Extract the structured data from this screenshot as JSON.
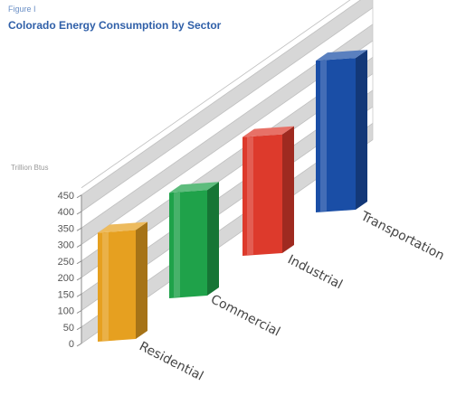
{
  "figure_label": "Figure I",
  "chart_data": {
    "type": "bar",
    "title": "Colorado Energy Consumption by Sector",
    "ylabel": "Trillion Btus",
    "xlabel": "",
    "categories": [
      "Residential",
      "Commercial",
      "Industrial",
      "Transportation"
    ],
    "values": [
      330,
      320,
      360,
      460
    ],
    "yticks": [
      0,
      50,
      100,
      150,
      200,
      250,
      300,
      350,
      400,
      450
    ],
    "ylim": [
      0,
      450
    ],
    "grid": true,
    "colors": {
      "Residential": "#e6a020",
      "Commercial": "#1fa24a",
      "Industrial": "#dd3a2c",
      "Transportation": "#1a4ea6"
    }
  }
}
